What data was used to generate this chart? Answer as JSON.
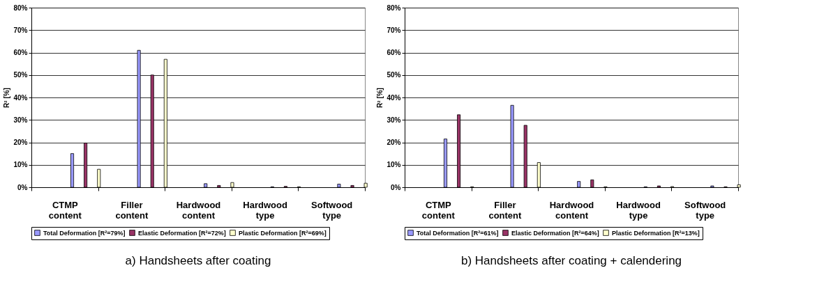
{
  "chart_data": [
    {
      "type": "bar",
      "title": "a) Handsheets after coating",
      "ylabel": "R² [%]",
      "categories": [
        "CTMP content",
        "Filler content",
        "Hardwood content",
        "Hardwood type",
        "Softwood type"
      ],
      "series": [
        {
          "name": "Total Deformation [R²=79%]",
          "color": "#9999ff",
          "values": [
            15,
            61,
            1.6,
            0.2,
            1.4
          ]
        },
        {
          "name": "Elastic Deformation [R²=72%]",
          "color": "#993366",
          "values": [
            19.7,
            50,
            0.8,
            0.4,
            0.8
          ]
        },
        {
          "name": "Plastic Deformation [R²=69%]",
          "color": "#ffffcc",
          "values": [
            8,
            57,
            2.1,
            0.2,
            1.8
          ]
        }
      ],
      "ylim": [
        0,
        80
      ],
      "yticks": [
        {
          "value": 0,
          "label": "0%"
        },
        {
          "value": 10,
          "label": "10%"
        },
        {
          "value": 20,
          "label": "20%"
        },
        {
          "value": 30,
          "label": "30%"
        },
        {
          "value": 40,
          "label": "40%"
        },
        {
          "value": 50,
          "label": "50%"
        },
        {
          "value": 60,
          "label": "60%"
        },
        {
          "value": 70,
          "label": "70%"
        },
        {
          "value": 80,
          "label": "80%"
        }
      ],
      "grid": "y",
      "legend": "bottom"
    },
    {
      "type": "bar",
      "title": "b) Handsheets after coating + calendering",
      "ylabel": "R² [%]",
      "categories": [
        "CTMP content",
        "Filler content",
        "Hardwood content",
        "Hardwood type",
        "Softwood type"
      ],
      "series": [
        {
          "name": "Total Deformation [R²=61%]",
          "color": "#9999ff",
          "values": [
            21.5,
            36.5,
            2.6,
            0.2,
            0.6
          ]
        },
        {
          "name": "Elastic Deformation [R²=64%]",
          "color": "#993366",
          "values": [
            32.3,
            27.6,
            3.3,
            0.6,
            0.2
          ]
        },
        {
          "name": "Plastic Deformation [R²=13%]",
          "color": "#ffffcc",
          "values": [
            0.2,
            11,
            0.2,
            0.3,
            1.1
          ]
        }
      ],
      "ylim": [
        0,
        80
      ],
      "yticks": [
        {
          "value": 0,
          "label": "0%"
        },
        {
          "value": 10,
          "label": "10%"
        },
        {
          "value": 20,
          "label": "20%"
        },
        {
          "value": 30,
          "label": "30%"
        },
        {
          "value": 40,
          "label": "40%"
        },
        {
          "value": 50,
          "label": "50%"
        },
        {
          "value": 60,
          "label": "60%"
        },
        {
          "value": 70,
          "label": "70%"
        },
        {
          "value": 80,
          "label": "80%"
        }
      ],
      "grid": "y",
      "legend": "bottom"
    }
  ]
}
